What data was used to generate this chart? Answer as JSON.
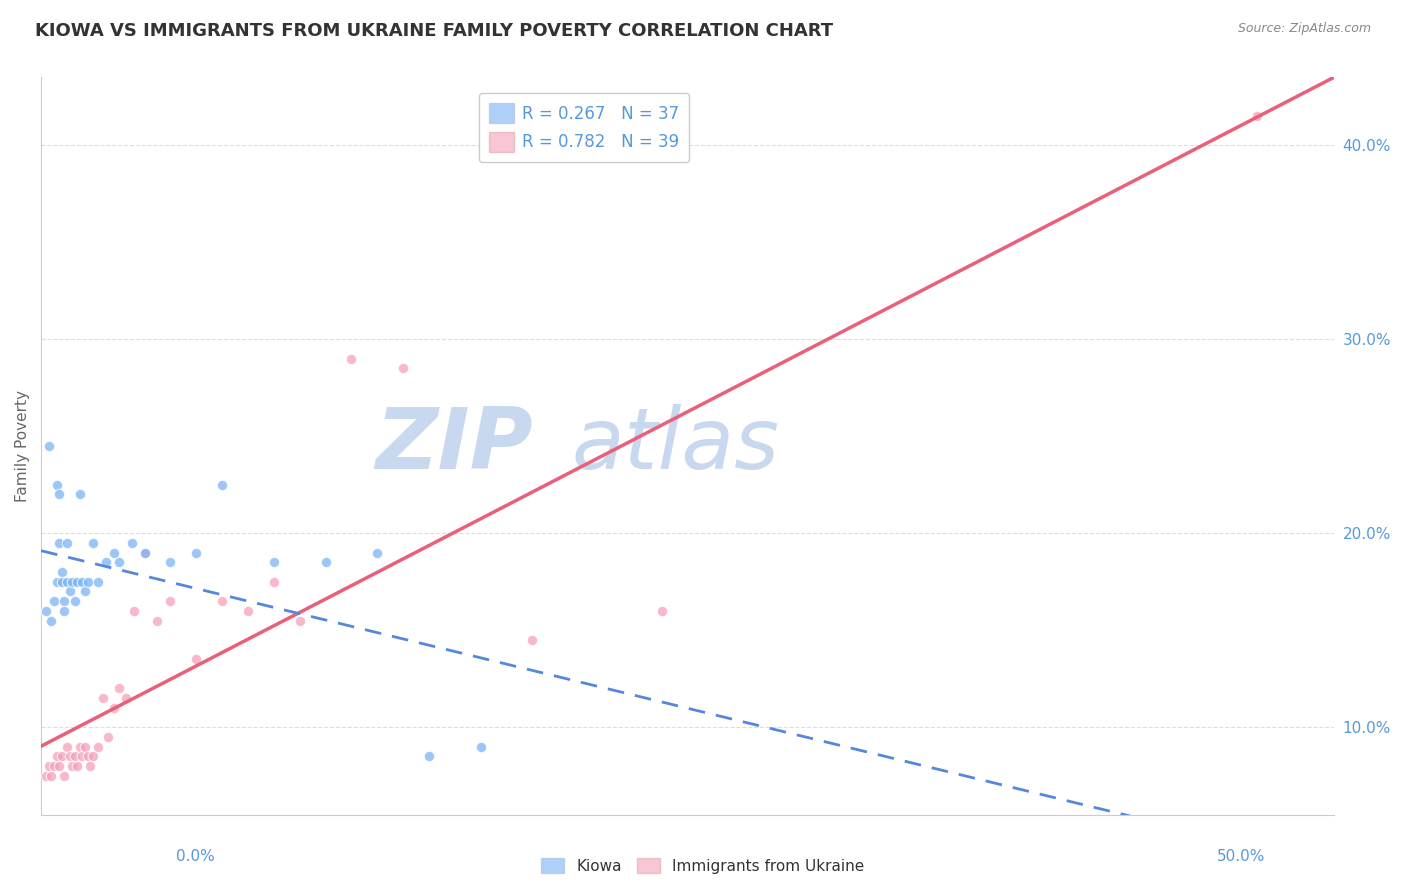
{
  "title": "KIOWA VS IMMIGRANTS FROM UKRAINE FAMILY POVERTY CORRELATION CHART",
  "source": "Source: ZipAtlas.com",
  "ylabel": "Family Poverty",
  "xmin": 0.0,
  "xmax": 0.5,
  "ymin": 0.055,
  "ymax": 0.435,
  "kiowa_color": "#7ab3f5",
  "ukraine_color": "#f5a0b8",
  "kiowa_line_color": "#5588dd",
  "ukraine_line_color": "#e8607a",
  "kiowa_R": 0.267,
  "kiowa_N": 37,
  "ukraine_R": 0.782,
  "ukraine_N": 39,
  "watermark_color": "#c8d8ee",
  "background_color": "#ffffff",
  "grid_color": "#dddddd",
  "tick_color": "#5599dd",
  "title_color": "#333333",
  "title_fontsize": 13,
  "axis_label_fontsize": 11,
  "tick_fontsize": 11,
  "kiowa_scatter_x": [
    0.002,
    0.003,
    0.004,
    0.005,
    0.006,
    0.006,
    0.007,
    0.007,
    0.008,
    0.008,
    0.009,
    0.009,
    0.01,
    0.01,
    0.011,
    0.012,
    0.013,
    0.014,
    0.015,
    0.016,
    0.017,
    0.018,
    0.02,
    0.022,
    0.025,
    0.028,
    0.03,
    0.035,
    0.04,
    0.05,
    0.06,
    0.07,
    0.09,
    0.11,
    0.13,
    0.15,
    0.17
  ],
  "kiowa_scatter_y": [
    0.16,
    0.245,
    0.155,
    0.165,
    0.225,
    0.175,
    0.22,
    0.195,
    0.18,
    0.175,
    0.165,
    0.16,
    0.195,
    0.175,
    0.17,
    0.175,
    0.165,
    0.175,
    0.22,
    0.175,
    0.17,
    0.175,
    0.195,
    0.175,
    0.185,
    0.19,
    0.185,
    0.195,
    0.19,
    0.185,
    0.19,
    0.225,
    0.185,
    0.185,
    0.19,
    0.085,
    0.09
  ],
  "ukraine_scatter_x": [
    0.002,
    0.003,
    0.004,
    0.005,
    0.006,
    0.007,
    0.008,
    0.009,
    0.01,
    0.011,
    0.012,
    0.013,
    0.014,
    0.015,
    0.016,
    0.017,
    0.018,
    0.019,
    0.02,
    0.022,
    0.024,
    0.026,
    0.028,
    0.03,
    0.033,
    0.036,
    0.04,
    0.045,
    0.05,
    0.06,
    0.07,
    0.08,
    0.09,
    0.1,
    0.12,
    0.14,
    0.19,
    0.24,
    0.47
  ],
  "ukraine_scatter_y": [
    0.075,
    0.08,
    0.075,
    0.08,
    0.085,
    0.08,
    0.085,
    0.075,
    0.09,
    0.085,
    0.08,
    0.085,
    0.08,
    0.09,
    0.085,
    0.09,
    0.085,
    0.08,
    0.085,
    0.09,
    0.115,
    0.095,
    0.11,
    0.12,
    0.115,
    0.16,
    0.19,
    0.155,
    0.165,
    0.135,
    0.165,
    0.16,
    0.175,
    0.155,
    0.29,
    0.285,
    0.145,
    0.16,
    0.415
  ]
}
